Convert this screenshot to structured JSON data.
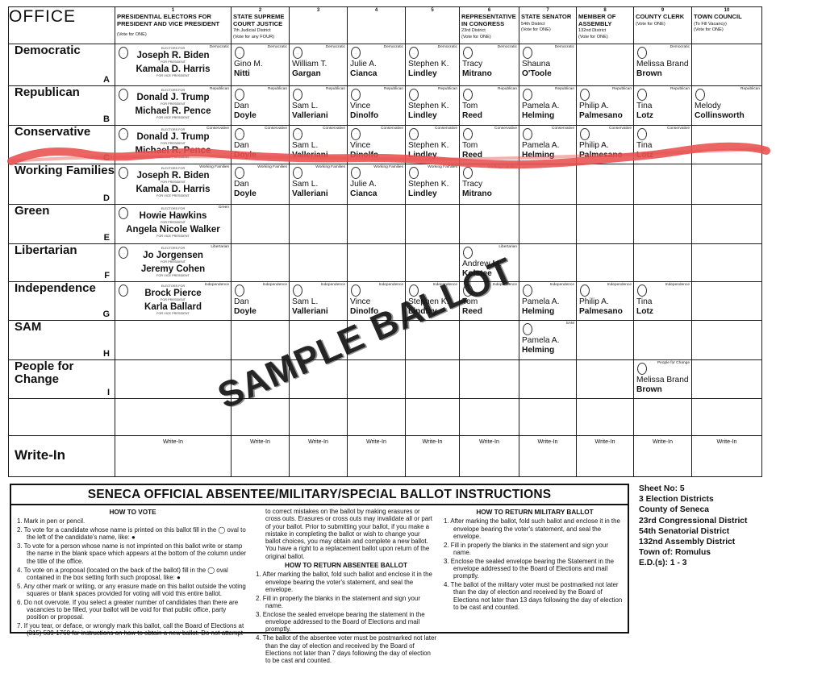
{
  "accents": {
    "marker_red": "#e8504f",
    "ink": "#1c1c1c"
  },
  "stamp": {
    "text": "SAMPLE BALLOT"
  },
  "ballot": {
    "office_header": "OFFICE",
    "writein_row_label": "Write-In",
    "writein_cell_label": "Write-In",
    "pres_labels": {
      "electors": "ELECTORS FOR",
      "president": "FOR PRESIDENT",
      "vice_president": "FOR VICE PRESIDENT"
    },
    "columns": [
      {
        "num": "1",
        "title": "PRESIDENTIAL ELECTORS FOR PRESIDENT AND VICE PRESIDENT",
        "subs": [
          "",
          "(Vote for ONE)"
        ]
      },
      {
        "num": "2",
        "title": "STATE SUPREME COURT JUSTICE",
        "subs": [
          "7th Judicial District",
          "(Vote for any FOUR)"
        ]
      },
      {
        "num": "3",
        "title": "",
        "subs": []
      },
      {
        "num": "4",
        "title": "",
        "subs": []
      },
      {
        "num": "5",
        "title": "",
        "subs": []
      },
      {
        "num": "6",
        "title": "REPRESENTATIVE IN CONGRESS",
        "subs": [
          "23rd District",
          "(Vote for ONE)"
        ]
      },
      {
        "num": "7",
        "title": "STATE SENATOR",
        "subs": [
          "54th District",
          "(Vote for ONE)"
        ]
      },
      {
        "num": "8",
        "title": "MEMBER OF ASSEMBLY",
        "subs": [
          "132nd District",
          "(Vote for ONE)"
        ]
      },
      {
        "num": "9",
        "title": "COUNTY CLERK",
        "subs": [
          "(Vote for ONE)"
        ]
      },
      {
        "num": "10",
        "title": "TOWN COUNCIL",
        "subs": [
          "(To Fill Vacancy)",
          "(Vote for ONE)"
        ]
      }
    ],
    "rows": [
      {
        "letter": "A",
        "party": "Democratic",
        "cells": [
          {
            "pres": [
              "Joseph R. Biden",
              "Kamala D. Harris"
            ]
          },
          {
            "lines": [
              "Gino M.",
              "Nitti"
            ]
          },
          {
            "lines": [
              "William T.",
              "Gargan"
            ]
          },
          {
            "lines": [
              "Julie A.",
              "Cianca"
            ]
          },
          {
            "lines": [
              "Stephen K.",
              "Lindley"
            ]
          },
          {
            "lines": [
              "Tracy",
              "Mitrano"
            ]
          },
          {
            "lines": [
              "Shauna",
              "O'Toole"
            ]
          },
          null,
          {
            "lines": [
              "Melissa Brand",
              "Brown"
            ]
          },
          null
        ]
      },
      {
        "letter": "B",
        "party": "Republican",
        "cells": [
          {
            "pres": [
              "Donald J. Trump",
              "Michael R. Pence"
            ]
          },
          {
            "lines": [
              "Dan",
              "Doyle"
            ]
          },
          {
            "lines": [
              "Sam L.",
              "Valleriani"
            ]
          },
          {
            "lines": [
              "Vince",
              "Dinolfo"
            ]
          },
          {
            "lines": [
              "Stephen K.",
              "Lindley"
            ]
          },
          {
            "lines": [
              "Tom",
              "Reed"
            ]
          },
          {
            "lines": [
              "Pamela A.",
              "Helming"
            ]
          },
          {
            "lines": [
              "Philip A.",
              "Palmesano"
            ]
          },
          {
            "lines": [
              "Tina",
              "Lotz"
            ]
          },
          {
            "lines": [
              "Melody",
              "Collinsworth"
            ]
          }
        ]
      },
      {
        "letter": "C",
        "party": "Conservative",
        "cells": [
          {
            "pres": [
              "Donald J. Trump",
              "Michael R. Pence"
            ]
          },
          {
            "lines": [
              "Dan",
              "Doyle"
            ]
          },
          {
            "lines": [
              "Sam L.",
              "Valleriani"
            ]
          },
          {
            "lines": [
              "Vince",
              "Dinolfo"
            ]
          },
          {
            "lines": [
              "Stephen K.",
              "Lindley"
            ]
          },
          {
            "lines": [
              "Tom",
              "Reed"
            ]
          },
          {
            "lines": [
              "Pamela A.",
              "Helming"
            ]
          },
          {
            "lines": [
              "Philip A.",
              "Palmesano"
            ]
          },
          {
            "lines": [
              "Tina",
              "Lotz"
            ]
          },
          null
        ]
      },
      {
        "letter": "D",
        "party": "Working Families",
        "cells": [
          {
            "pres": [
              "Joseph R. Biden",
              "Kamala D. Harris"
            ]
          },
          {
            "lines": [
              "Dan",
              "Doyle"
            ]
          },
          {
            "lines": [
              "Sam L.",
              "Valleriani"
            ]
          },
          {
            "lines": [
              "Julie A.",
              "Cianca"
            ]
          },
          {
            "lines": [
              "Stephen K.",
              "Lindley"
            ]
          },
          {
            "lines": [
              "Tracy",
              "Mitrano"
            ]
          },
          null,
          null,
          null,
          null
        ]
      },
      {
        "letter": "E",
        "party": "Green",
        "cells": [
          {
            "pres": [
              "Howie Hawkins",
              "Angela Nicole Walker"
            ]
          },
          null,
          null,
          null,
          null,
          null,
          null,
          null,
          null,
          null
        ]
      },
      {
        "letter": "F",
        "party": "Libertarian",
        "cells": [
          {
            "pres": [
              "Jo Jorgensen",
              "Jeremy Cohen"
            ]
          },
          null,
          null,
          null,
          null,
          {
            "lines": [
              "Andrew M.",
              "Kolstee"
            ]
          },
          null,
          null,
          null,
          null
        ]
      },
      {
        "letter": "G",
        "party": "Independence",
        "cells": [
          {
            "pres": [
              "Brock Pierce",
              "Karla Ballard"
            ]
          },
          {
            "lines": [
              "Dan",
              "Doyle"
            ]
          },
          {
            "lines": [
              "Sam L.",
              "Valleriani"
            ]
          },
          {
            "lines": [
              "Vince",
              "Dinolfo"
            ]
          },
          {
            "lines": [
              "Stephen K.",
              "Lindley"
            ]
          },
          {
            "lines": [
              "Tom",
              "Reed"
            ]
          },
          {
            "lines": [
              "Pamela A.",
              "Helming"
            ]
          },
          {
            "lines": [
              "Philip A.",
              "Palmesano"
            ]
          },
          {
            "lines": [
              "Tina",
              "Lotz"
            ]
          },
          null
        ]
      },
      {
        "letter": "H",
        "party": "SAM",
        "cells": [
          null,
          null,
          null,
          null,
          null,
          null,
          {
            "lines": [
              "Pamela A.",
              "Helming"
            ]
          },
          null,
          null,
          null
        ]
      },
      {
        "letter": "I",
        "party": "People for Change",
        "cells": [
          null,
          null,
          null,
          null,
          null,
          null,
          null,
          null,
          {
            "lines": [
              "Melissa Brand",
              "Brown"
            ]
          },
          null
        ]
      },
      {
        "letter": "",
        "party": "",
        "cells": [
          null,
          null,
          null,
          null,
          null,
          null,
          null,
          null,
          null,
          null
        ]
      }
    ]
  },
  "instructions": {
    "title": "SENECA OFFICIAL ABSENTEE/MILITARY/SPECIAL BALLOT INSTRUCTIONS",
    "how_to_vote": {
      "heading": "HOW TO VOTE",
      "items": [
        "1.  Mark in pen or pencil.",
        "2.  To vote for a candidate whose name is printed on this ballot fill in the ◯ oval to the left of the candidate's name, like: ●",
        "3.  To vote for a person whose name is not imprinted on this ballot write or stamp the name in the blank space which appears at the bottom of the column under the title of the office.",
        "4.  To vote on a proposal (located on the back of the ballot) fill in the ◯ oval contained in the box setting forth such proposal, like: ●",
        "5.  Any other mark or writing, or any erasure made on this ballot outside the voting squares or blank spaces provided for voting will void this entire ballot.",
        "6.  Do not overvote. If you select a greater number of candidates than there are vacancies to be filled, your ballot will be void for that public office, party position or proposal.",
        "7.  If you tear, or deface, or wrongly mark this ballot, call the Board of Elections at (315) 539-1760 for instructions on how to obtain a new ballot. Do not attempt"
      ]
    },
    "continuation": "to correct mistakes on the ballot by making erasures or cross outs.  Erasures or cross outs may invalidate all or part of your ballot. Prior to submitting your ballot, if you make a mistake in completing the ballot or wish to change your ballot choices, you may obtain and complete a new ballot. You have a right to a replacement ballot upon return of the original ballot.",
    "return_absentee": {
      "heading": "HOW TO RETURN ABSENTEE BALLOT",
      "items": [
        "1. After marking the ballot, fold such ballot and enclose it in the envelope bearing the voter's statement, and seal the envelope.",
        "2. Fill in properly the blanks in the statement and sign your name.",
        "3. Enclose the sealed envelope bearing the statement in the envelope addressed to the Board of Elections and mail promptly.",
        "4. The ballot of the absentee voter must be postmarked not later than the day of election and received by the Board of Elections not later than 7 days following the day of election to be cast and counted."
      ]
    },
    "return_military": {
      "heading": "HOW TO RETURN MILITARY BALLOT",
      "items": [
        "1. After marking the ballot, fold such ballot and enclose it in the envelope bearing the voter's statement, and seal the envelope.",
        "2. Fill in properly the blanks in the statement and sign your name.",
        "3. Enclose the sealed envelope bearing the Statement in the envelope addressed to the Board of Elections and mail promptly.",
        "4. The ballot of the military voter must be postmarked not later than the day of election and received by the Board of Elections not later than 13 days following the day of election to be cast and counted."
      ]
    }
  },
  "sheet_info": {
    "lines": [
      "Sheet No: 5",
      "3 Election Districts",
      "County of Seneca",
      "23rd Congressional District",
      "54th Senatorial District",
      "132nd Assembly District",
      "Town of: Romulus",
      "E.D.(s): 1 - 3"
    ]
  }
}
